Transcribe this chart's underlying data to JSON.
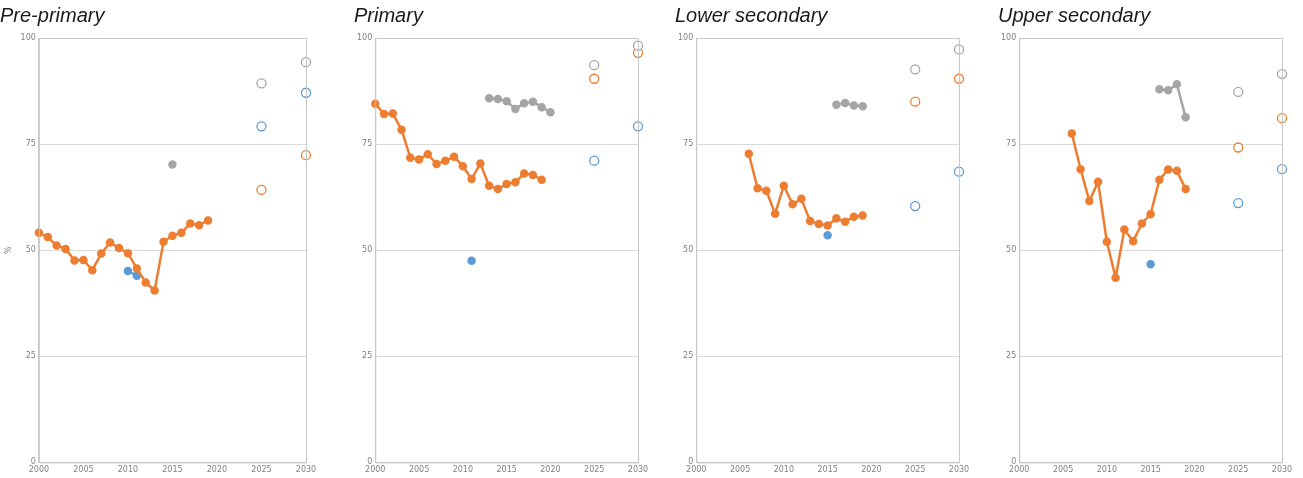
{
  "chart_data": [
    {
      "type": "line",
      "title": "Pre-primary",
      "ylabel": "%",
      "xlim": [
        2000,
        2030
      ],
      "xticks": [
        2000,
        2005,
        2010,
        2015,
        2020,
        2025,
        2030
      ],
      "ylim": [
        0,
        100
      ],
      "yticks": [
        0,
        25,
        50,
        75,
        100
      ],
      "grid": "y",
      "marker": "circle",
      "line_style": "solid",
      "series": [
        {
          "color": "#ed7d31",
          "x": [
            2000,
            2001,
            2002,
            2003,
            2004,
            2005,
            2006,
            2007,
            2008,
            2009,
            2010,
            2011,
            2012,
            2013,
            2014,
            2015,
            2016,
            2017,
            2018,
            2019
          ],
          "values": [
            54.1,
            53.1,
            51.1,
            50.3,
            47.6,
            47.7,
            45.3,
            49.2,
            51.8,
            50.5,
            49.3,
            45.7,
            42.4,
            40.5,
            52.0,
            53.4,
            54.1,
            56.3,
            55.9,
            57.0
          ]
        },
        {
          "color": "#5b9bd5",
          "x": [
            2010,
            2011
          ],
          "values": [
            45.1,
            44.0
          ]
        },
        {
          "color": "#a5a5a5",
          "x": [
            2015
          ],
          "values": [
            70.2
          ]
        },
        {
          "type": "scatter",
          "color": "#a5a5a5",
          "x": [
            2025,
            2030
          ],
          "values": [
            89.3,
            94.3
          ]
        },
        {
          "type": "scatter",
          "color": "#5b9bd5",
          "x": [
            2025,
            2030
          ],
          "values": [
            79.2,
            87.1
          ]
        },
        {
          "type": "scatter",
          "color": "#ed7d31",
          "x": [
            2025,
            2030
          ],
          "values": [
            64.2,
            72.4
          ]
        }
      ]
    },
    {
      "type": "line",
      "title": "Primary",
      "xlim": [
        2000,
        2030
      ],
      "xticks": [
        2000,
        2005,
        2010,
        2015,
        2020,
        2025,
        2030
      ],
      "ylim": [
        0,
        100
      ],
      "yticks": [
        0,
        25,
        50,
        75,
        100
      ],
      "grid": "y",
      "marker": "circle",
      "line_style": "solid",
      "series": [
        {
          "color": "#ed7d31",
          "x": [
            2000,
            2001,
            2002,
            2003,
            2004,
            2005,
            2006,
            2007,
            2008,
            2009,
            2010,
            2011,
            2012,
            2013,
            2014,
            2015,
            2016,
            2017,
            2018,
            2019
          ],
          "values": [
            84.5,
            82.1,
            82.2,
            78.4,
            71.8,
            71.4,
            72.6,
            70.3,
            71.1,
            72.0,
            69.8,
            66.8,
            70.4,
            65.2,
            64.4,
            65.6,
            66.0,
            68.1,
            67.7,
            66.6
          ]
        },
        {
          "color": "#a5a5a5",
          "x": [
            2013,
            2014,
            2015,
            2016,
            2017,
            2018,
            2019,
            2020
          ],
          "values": [
            85.8,
            85.6,
            85.1,
            83.3,
            84.6,
            85.0,
            83.7,
            82.5
          ]
        },
        {
          "color": "#5b9bd5",
          "x": [
            2011
          ],
          "values": [
            47.5
          ]
        },
        {
          "type": "scatter",
          "color": "#a5a5a5",
          "x": [
            2025,
            2030
          ],
          "values": [
            93.6,
            98.2
          ]
        },
        {
          "type": "scatter",
          "color": "#ed7d31",
          "x": [
            2025,
            2030
          ],
          "values": [
            90.4,
            96.5
          ]
        },
        {
          "type": "scatter",
          "color": "#5b9bd5",
          "x": [
            2025,
            2030
          ],
          "values": [
            71.1,
            79.2
          ]
        }
      ]
    },
    {
      "type": "line",
      "title": "Lower secondary",
      "xlim": [
        2000,
        2030
      ],
      "xticks": [
        2000,
        2005,
        2010,
        2015,
        2020,
        2025,
        2030
      ],
      "ylim": [
        0,
        100
      ],
      "yticks": [
        0,
        25,
        50,
        75,
        100
      ],
      "grid": "y",
      "marker": "circle",
      "line_style": "solid",
      "series": [
        {
          "color": "#ed7d31",
          "x": [
            2006,
            2007,
            2008,
            2009,
            2010,
            2011,
            2012,
            2013,
            2014,
            2015,
            2016,
            2017,
            2018,
            2019
          ],
          "values": [
            72.7,
            64.6,
            64.0,
            58.6,
            65.2,
            60.8,
            62.1,
            56.9,
            56.2,
            55.8,
            57.5,
            56.7,
            57.9,
            58.2
          ]
        },
        {
          "color": "#a5a5a5",
          "x": [
            2016,
            2017,
            2018,
            2019
          ],
          "values": [
            84.3,
            84.7,
            84.1,
            83.9
          ]
        },
        {
          "color": "#5b9bd5",
          "x": [
            2015
          ],
          "values": [
            53.5
          ]
        },
        {
          "type": "scatter",
          "color": "#a5a5a5",
          "x": [
            2025,
            2030
          ],
          "values": [
            92.6,
            97.3
          ]
        },
        {
          "type": "scatter",
          "color": "#ed7d31",
          "x": [
            2025,
            2030
          ],
          "values": [
            85.0,
            90.4
          ]
        },
        {
          "type": "scatter",
          "color": "#5b9bd5",
          "x": [
            2025,
            2030
          ],
          "values": [
            60.4,
            68.5
          ]
        }
      ]
    },
    {
      "type": "line",
      "title": "Upper secondary",
      "xlim": [
        2000,
        2030
      ],
      "xticks": [
        2000,
        2005,
        2010,
        2015,
        2020,
        2025,
        2030
      ],
      "ylim": [
        0,
        100
      ],
      "yticks": [
        0,
        25,
        50,
        75,
        100
      ],
      "grid": "y",
      "marker": "circle",
      "line_style": "solid",
      "series": [
        {
          "color": "#ed7d31",
          "x": [
            2006,
            2007,
            2008,
            2009,
            2010,
            2011,
            2012,
            2013,
            2014,
            2015,
            2016,
            2017,
            2018,
            2019
          ],
          "values": [
            77.5,
            69.1,
            61.6,
            66.1,
            52.0,
            43.5,
            54.9,
            52.1,
            56.3,
            58.5,
            66.6,
            69.0,
            68.7,
            64.4
          ]
        },
        {
          "color": "#a5a5a5",
          "x": [
            2016,
            2017,
            2018,
            2019
          ],
          "values": [
            87.9,
            87.7,
            89.1,
            81.3
          ]
        },
        {
          "color": "#5b9bd5",
          "x": [
            2015
          ],
          "values": [
            46.7
          ]
        },
        {
          "type": "scatter",
          "color": "#a5a5a5",
          "x": [
            2025,
            2030
          ],
          "values": [
            87.3,
            91.5
          ]
        },
        {
          "type": "scatter",
          "color": "#ed7d31",
          "x": [
            2025,
            2030
          ],
          "values": [
            74.2,
            81.1
          ]
        },
        {
          "type": "scatter",
          "color": "#5b9bd5",
          "x": [
            2025,
            2030
          ],
          "values": [
            61.1,
            69.1
          ]
        }
      ]
    }
  ]
}
